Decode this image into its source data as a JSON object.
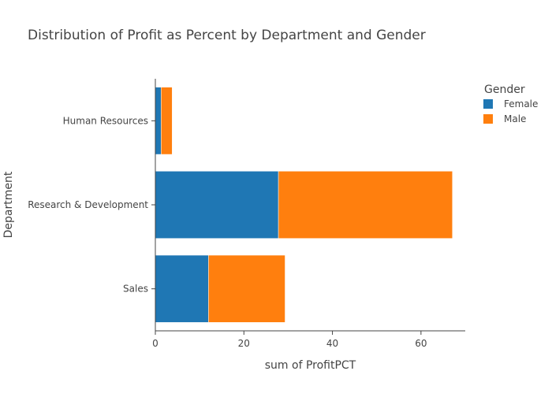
{
  "chart_data": {
    "type": "bar",
    "orientation": "horizontal",
    "barmode": "stack",
    "title": "Distribution of Profit as Percent by Department and Gender",
    "xlabel": "sum of ProfitPCT",
    "ylabel": "Department",
    "xlim": [
      0,
      70
    ],
    "x_ticks": [
      0,
      20,
      40,
      60
    ],
    "categories": [
      "Human Resources",
      "Research & Development",
      "Sales"
    ],
    "legend_title": "Gender",
    "legend_position": "top-right",
    "grid": false,
    "series": [
      {
        "name": "Female",
        "color": "#1f77b4",
        "values": [
          1.3,
          27.8,
          12.0
        ]
      },
      {
        "name": "Male",
        "color": "#ff7f0e",
        "values": [
          2.5,
          39.3,
          17.3
        ]
      }
    ]
  }
}
